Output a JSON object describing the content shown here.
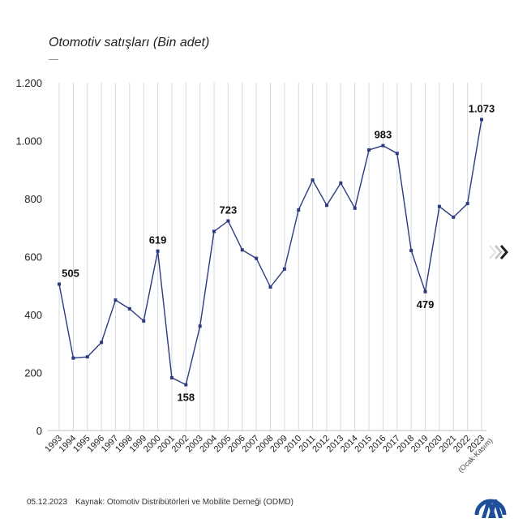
{
  "chart_data": {
    "type": "line",
    "title": "Otomotiv satışları (Bin adet)",
    "xlabel": "",
    "ylabel": "",
    "categories": [
      "1993",
      "1994",
      "1995",
      "1996",
      "1997",
      "1998",
      "1999",
      "2000",
      "2001",
      "2002",
      "2003",
      "2004",
      "2005",
      "2006",
      "2007",
      "2008",
      "2009",
      "2010",
      "2011",
      "2012",
      "2013",
      "2014",
      "2015",
      "2016",
      "2017",
      "2018",
      "2019",
      "2020",
      "2021",
      "2022",
      "2023"
    ],
    "category_note": "(Ocak-Kasım)",
    "values": [
      505,
      250,
      254,
      304,
      450,
      420,
      378,
      619,
      182,
      158,
      360,
      687,
      723,
      623,
      594,
      495,
      557,
      761,
      864,
      777,
      854,
      767,
      968,
      983,
      956,
      621,
      479,
      773,
      736,
      783,
      1073
    ],
    "labeled_points": [
      {
        "index": 0,
        "label": "505",
        "pos": "above"
      },
      {
        "index": 7,
        "label": "619",
        "pos": "above"
      },
      {
        "index": 9,
        "label": "158",
        "pos": "below"
      },
      {
        "index": 12,
        "label": "723",
        "pos": "above"
      },
      {
        "index": 23,
        "label": "983",
        "pos": "above"
      },
      {
        "index": 26,
        "label": "479",
        "pos": "below"
      },
      {
        "index": 30,
        "label": "1.073",
        "pos": "above"
      }
    ],
    "yticks": [
      0,
      200,
      400,
      600,
      800,
      1000,
      1200
    ],
    "ytick_labels": [
      "0",
      "200",
      "400",
      "600",
      "800",
      "1.000",
      "1.200"
    ],
    "ylim": [
      0,
      1200
    ],
    "grid": "vertical",
    "legend": "none",
    "line_color": "#2c3a80"
  },
  "footer": {
    "date": "05.12.2023",
    "source": "Kaynak: Otomotiv Distribütörleri ve Mobilite Derneği (ODMD)"
  },
  "icons": {
    "next": "chevron-right-icon",
    "logo": "aa-logo-icon"
  },
  "colors": {
    "logo": "#1f4e9a",
    "grid": "#d9d9d9"
  }
}
